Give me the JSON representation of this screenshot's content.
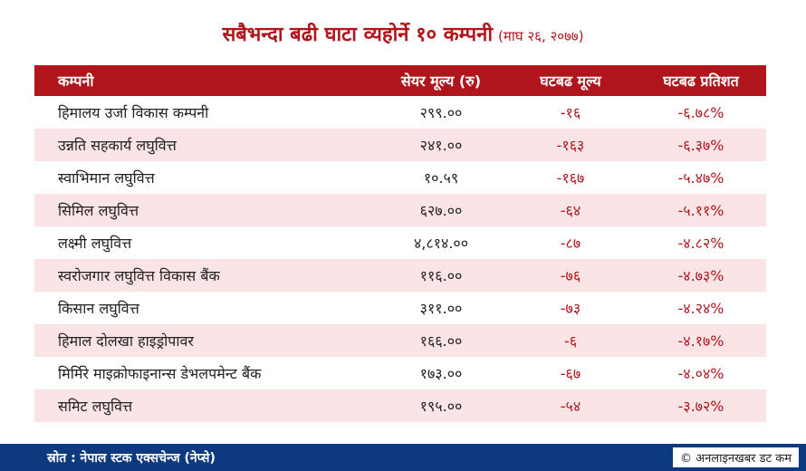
{
  "title": {
    "main": "सबैभन्दा बढी घाटा व्यहोर्ने १० कम्पनी",
    "sub": "(माघ २६, २०७७)"
  },
  "table": {
    "headers": [
      "कम्पनी",
      "सेयर मूल्य (रु)",
      "घटबढ मूल्य",
      "घटबढ प्रतिशत"
    ],
    "rows": [
      {
        "company": "हिमालय उर्जा विकास कम्पनी",
        "price": "२९९.००",
        "change": "-१६",
        "percent": "-६.७८%"
      },
      {
        "company": "उन्नति सहकार्य लघुवित्त",
        "price": "२४१.००",
        "change": "-१६३",
        "percent": "-६.३७%"
      },
      {
        "company": "स्वाभिमान लघुवित्त",
        "price": "१०.५९",
        "change": "-१६७",
        "percent": "-५.४७%"
      },
      {
        "company": "सिमिल लघुवित्त",
        "price": "६२७.००",
        "change": "-६४",
        "percent": "-५.११%"
      },
      {
        "company": "लक्ष्मी लघुवित्त",
        "price": "४,८१४.००",
        "change": "-८७",
        "percent": "-४.८२%"
      },
      {
        "company": "स्वरोजगार लघुवित्त विकास बैंक",
        "price": "११६.००",
        "change": "-७६",
        "percent": "-४.७३%"
      },
      {
        "company": "किसान लघुवित्त",
        "price": "३११.००",
        "change": "-७३",
        "percent": "-४.२४%"
      },
      {
        "company": "हिमाल दोलखा हाइड्रोपावर",
        "price": "१६६.००",
        "change": "-६",
        "percent": "-४.१७%"
      },
      {
        "company": "मिर्मिरे माइक्रोफाइनान्स डेभलपमेन्ट बैंक",
        "price": "१७३.००",
        "change": "-६७",
        "percent": "-४.०४%"
      },
      {
        "company": "समिट लघुवित्त",
        "price": "१९५.००",
        "change": "-५४",
        "percent": "-३.७२%"
      }
    ]
  },
  "footer": {
    "source": "स्रोत : नेपाल स्टक एक्सचेन्ज (नेप्से)",
    "credit": "© अनलाइनखबर डट कम"
  },
  "colors": {
    "accent": "#b0151c",
    "row_alt": "#fbe4e6",
    "footer_bg": "#0d3a7f"
  }
}
